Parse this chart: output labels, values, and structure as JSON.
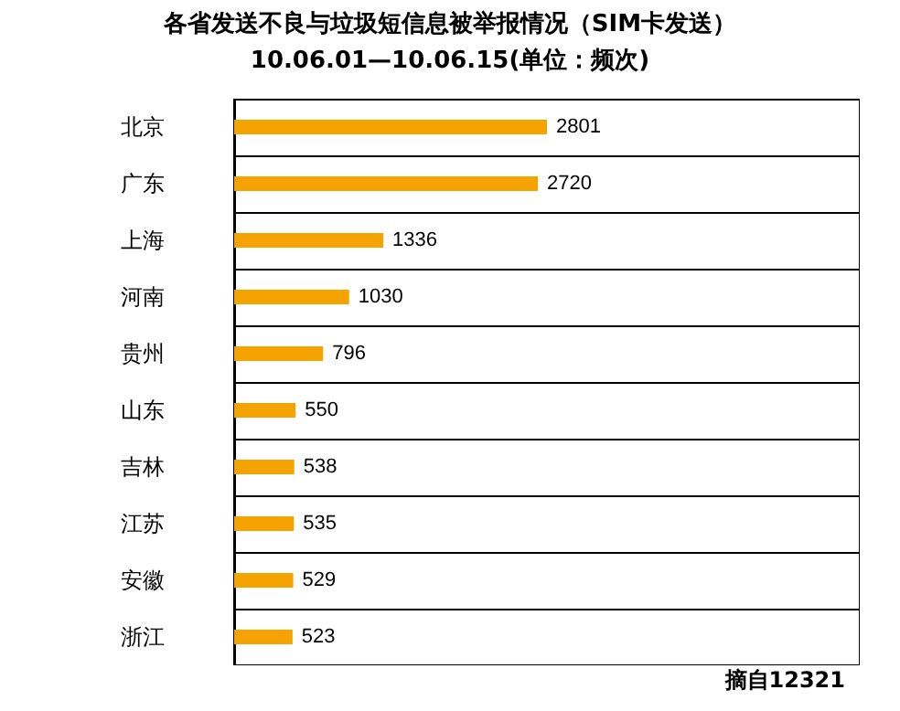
{
  "chart_data": {
    "type": "bar",
    "orientation": "horizontal",
    "title": "各省发送不良与垃圾短信息被举报情况（SIM卡发送）",
    "subtitle": "10.06.01—10.06.15(单位：频次)",
    "categories": [
      "北京",
      "广东",
      "上海",
      "河南",
      "贵州",
      "山东",
      "吉林",
      "江苏",
      "安徽",
      "浙江"
    ],
    "values": [
      2801,
      2720,
      1336,
      1030,
      796,
      550,
      538,
      535,
      529,
      523
    ],
    "color": "#f5a300",
    "data_labels": true,
    "grid": "y",
    "annotations": [
      "摘自12321"
    ]
  }
}
